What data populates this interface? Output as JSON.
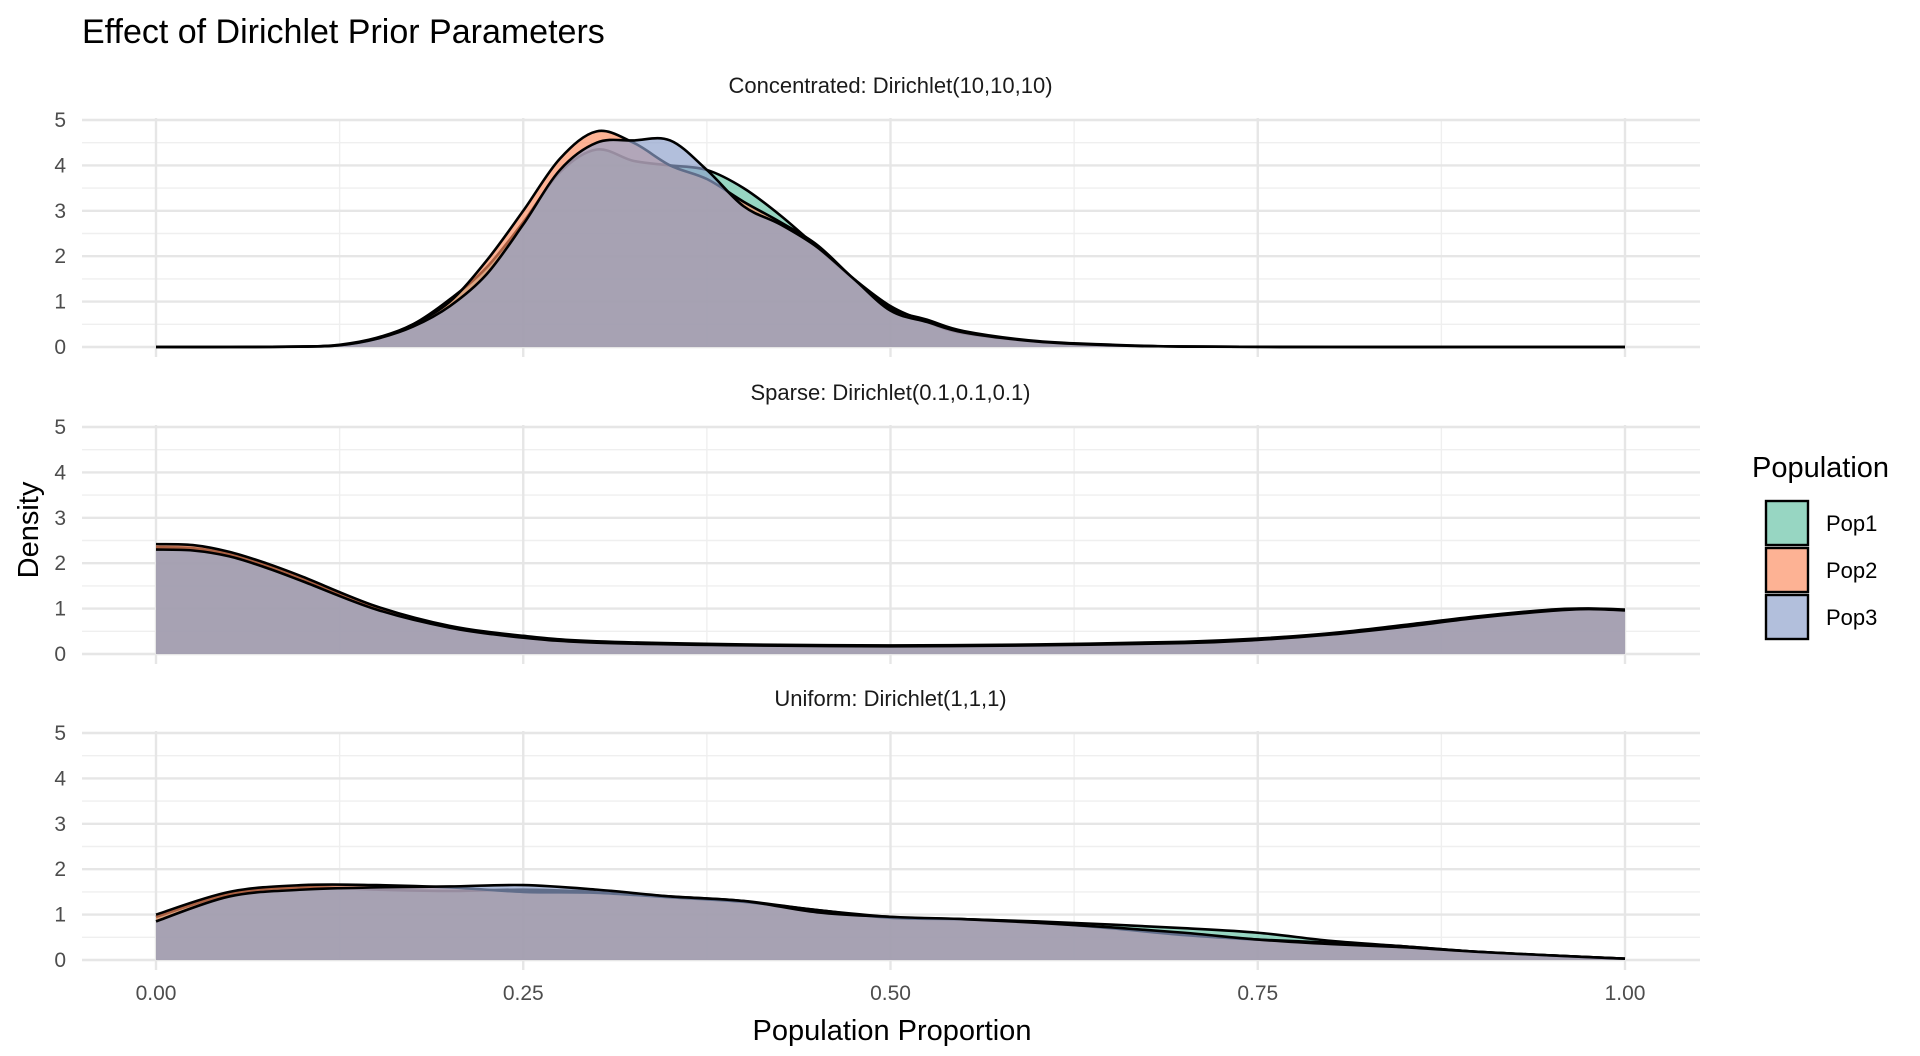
{
  "chart_data": {
    "type": "area",
    "title": "Effect of Dirichlet Prior Parameters",
    "xlabel": "Population Proportion",
    "ylabel": "Density",
    "xlim": [
      0,
      1
    ],
    "ylim": [
      0,
      5
    ],
    "x_ticks": [
      "0.00",
      "0.25",
      "0.50",
      "0.75",
      "1.00"
    ],
    "y_ticks": [
      "0",
      "1",
      "2",
      "3",
      "4",
      "5"
    ],
    "grid": true,
    "legend": {
      "title": "Population",
      "position": "right",
      "entries": [
        {
          "name": "Pop1",
          "color": "#66C2A5"
        },
        {
          "name": "Pop2",
          "color": "#FC8D62"
        },
        {
          "name": "Pop3",
          "color": "#8DA0CB"
        }
      ]
    },
    "panels": [
      {
        "label": "Concentrated: Dirichlet(10,10,10)",
        "x": [
          0,
          0.05,
          0.1,
          0.125,
          0.15,
          0.175,
          0.2,
          0.225,
          0.25,
          0.275,
          0.3,
          0.325,
          0.35,
          0.375,
          0.4,
          0.425,
          0.45,
          0.475,
          0.5,
          0.525,
          0.55,
          0.6,
          0.65,
          0.7,
          0.8,
          0.9,
          1.0
        ],
        "series": [
          {
            "name": "Pop1",
            "values": [
              0,
              0,
              0.01,
              0.05,
              0.2,
              0.5,
              1.05,
              1.75,
              2.75,
              3.85,
              4.35,
              4.1,
              4.0,
              3.9,
              3.5,
              2.9,
              2.2,
              1.5,
              0.9,
              0.55,
              0.3,
              0.12,
              0.04,
              0.01,
              0,
              0,
              0
            ]
          },
          {
            "name": "Pop2",
            "values": [
              0,
              0,
              0.01,
              0.04,
              0.18,
              0.5,
              1.0,
              1.9,
              3.0,
              4.15,
              4.75,
              4.5,
              4.0,
              3.7,
              3.2,
              2.75,
              2.25,
              1.5,
              0.85,
              0.6,
              0.35,
              0.13,
              0.05,
              0.01,
              0,
              0,
              0
            ]
          },
          {
            "name": "Pop3",
            "values": [
              0,
              0,
              0.01,
              0.04,
              0.18,
              0.45,
              0.9,
              1.6,
              2.7,
              3.9,
              4.5,
              4.55,
              4.55,
              3.9,
              3.1,
              2.7,
              2.2,
              1.5,
              0.8,
              0.55,
              0.32,
              0.12,
              0.04,
              0.01,
              0,
              0,
              0
            ]
          }
        ]
      },
      {
        "label": "Sparse: Dirichlet(0.1,0.1,0.1)",
        "x": [
          0,
          0.025,
          0.05,
          0.075,
          0.1,
          0.15,
          0.2,
          0.25,
          0.3,
          0.4,
          0.5,
          0.6,
          0.7,
          0.75,
          0.8,
          0.85,
          0.9,
          0.95,
          0.975,
          1.0
        ],
        "series": [
          {
            "name": "Pop1",
            "values": [
              2.35,
              2.33,
              2.2,
              1.95,
              1.65,
              1.0,
              0.6,
              0.38,
              0.27,
              0.2,
              0.18,
              0.2,
              0.26,
              0.33,
              0.45,
              0.63,
              0.82,
              0.97,
              1.0,
              0.97
            ]
          },
          {
            "name": "Pop2",
            "values": [
              2.42,
              2.4,
              2.25,
              2.0,
              1.7,
              1.05,
              0.62,
              0.4,
              0.28,
              0.21,
              0.19,
              0.21,
              0.27,
              0.34,
              0.46,
              0.64,
              0.83,
              0.98,
              1.0,
              0.98
            ]
          },
          {
            "name": "Pop3",
            "values": [
              2.3,
              2.28,
              2.15,
              1.9,
              1.6,
              0.98,
              0.58,
              0.36,
              0.25,
              0.19,
              0.17,
              0.19,
              0.24,
              0.31,
              0.43,
              0.6,
              0.8,
              0.95,
              0.99,
              0.96
            ]
          }
        ]
      },
      {
        "label": "Uniform: Dirichlet(1,1,1)",
        "x": [
          0,
          0.05,
          0.1,
          0.15,
          0.2,
          0.25,
          0.3,
          0.35,
          0.4,
          0.45,
          0.5,
          0.55,
          0.6,
          0.65,
          0.7,
          0.75,
          0.8,
          0.85,
          0.9,
          0.95,
          1.0
        ],
        "series": [
          {
            "name": "Pop1",
            "values": [
              0.95,
              1.45,
              1.6,
              1.55,
              1.52,
              1.55,
              1.5,
              1.4,
              1.3,
              1.1,
              0.95,
              0.9,
              0.85,
              0.78,
              0.7,
              0.6,
              0.42,
              0.3,
              0.18,
              0.1,
              0.03
            ]
          },
          {
            "name": "Pop2",
            "values": [
              1.0,
              1.5,
              1.65,
              1.65,
              1.6,
              1.5,
              1.48,
              1.38,
              1.28,
              1.1,
              0.93,
              0.9,
              0.83,
              0.7,
              0.55,
              0.45,
              0.38,
              0.3,
              0.18,
              0.1,
              0.03
            ]
          },
          {
            "name": "Pop3",
            "values": [
              0.85,
              1.4,
              1.55,
              1.6,
              1.62,
              1.65,
              1.55,
              1.4,
              1.3,
              1.05,
              0.95,
              0.9,
              0.82,
              0.72,
              0.6,
              0.45,
              0.35,
              0.28,
              0.18,
              0.1,
              0.03
            ]
          }
        ]
      }
    ]
  }
}
